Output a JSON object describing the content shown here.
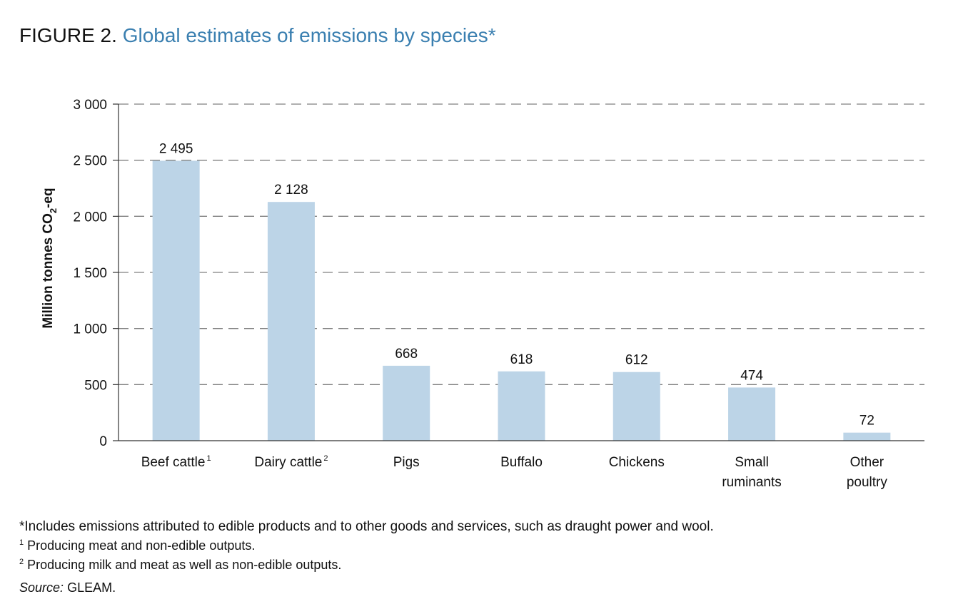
{
  "figure": {
    "label": "FIGURE 2.",
    "title": "Global estimates of emissions by species*"
  },
  "chart_data": {
    "type": "bar",
    "title": "Global estimates of emissions by species*",
    "ylabel": "Million tonnes CO2-eq",
    "ylabel_main": "Million tonnes CO",
    "ylabel_sub": "2",
    "ylabel_tail": "-eq",
    "xlabel": "",
    "ylim": [
      0,
      3000
    ],
    "yticks": [
      0,
      500,
      1000,
      1500,
      2000,
      2500,
      3000
    ],
    "ytick_labels": [
      "0",
      "500",
      "1 000",
      "1 500",
      "2 000",
      "2 500",
      "3 000"
    ],
    "grid": "dashed horizontal",
    "bar_color": "#bcd4e7",
    "categories": [
      {
        "lines": [
          "Beef cattle"
        ],
        "sup": "1"
      },
      {
        "lines": [
          "Dairy cattle"
        ],
        "sup": "2"
      },
      {
        "lines": [
          "Pigs"
        ],
        "sup": ""
      },
      {
        "lines": [
          "Buffalo"
        ],
        "sup": ""
      },
      {
        "lines": [
          "Chickens"
        ],
        "sup": ""
      },
      {
        "lines": [
          "Small",
          "ruminants"
        ],
        "sup": ""
      },
      {
        "lines": [
          "Other",
          "poultry"
        ],
        "sup": ""
      }
    ],
    "values": [
      2495,
      2128,
      668,
      618,
      612,
      474,
      72
    ],
    "value_labels": [
      "2 495",
      "2 128",
      "668",
      "618",
      "612",
      "474",
      "72"
    ]
  },
  "notes": {
    "asterisk": "*Includes emissions attributed to edible products and to other goods and services, such as draught power and wool.",
    "fn1_mark": "1",
    "fn1": "Producing meat and non-edible outputs.",
    "fn2_mark": "2",
    "fn2": "Producing milk and meat as well as non-edible outputs.",
    "source_label": "Source:",
    "source": "GLEAM."
  }
}
